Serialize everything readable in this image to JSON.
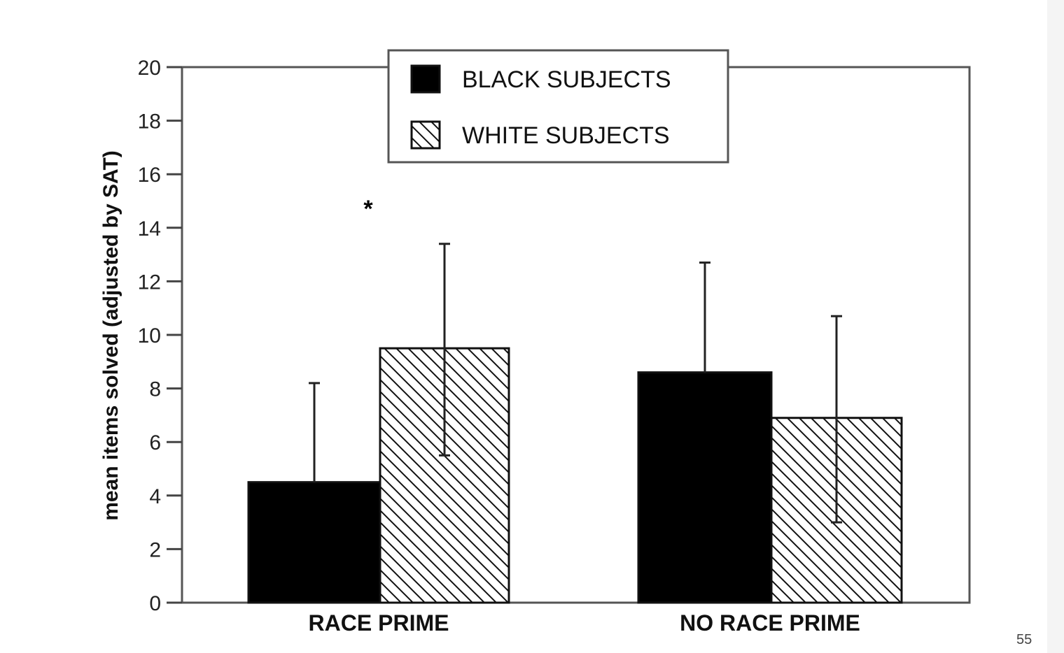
{
  "slide": {
    "number": "55"
  },
  "chart_data": {
    "type": "bar",
    "categories": [
      "RACE PRIME",
      "NO RACE PRIME"
    ],
    "series": [
      {
        "name": "BLACK SUBJECTS",
        "values": [
          4.5,
          8.6
        ],
        "error_upper": [
          8.2,
          12.7
        ],
        "color": "#000000",
        "pattern": "solid"
      },
      {
        "name": "WHITE SUBJECTS",
        "values": [
          9.5,
          6.9
        ],
        "error_upper": [
          13.4,
          10.7
        ],
        "error_lower": [
          5.5,
          3.0
        ],
        "color": "#000000",
        "pattern": "diagonal-hatch"
      }
    ],
    "xlabel": "",
    "ylabel": "mean items solved (adjusted by SAT)",
    "ylim": [
      0,
      20
    ],
    "yticks": [
      "0",
      "2",
      "4",
      "6",
      "8",
      "10",
      "12",
      "14",
      "16",
      "18",
      "20"
    ],
    "legend_position": "top-center",
    "annotations": [
      {
        "text": "*",
        "category": "RACE PRIME"
      }
    ],
    "grid": false
  }
}
